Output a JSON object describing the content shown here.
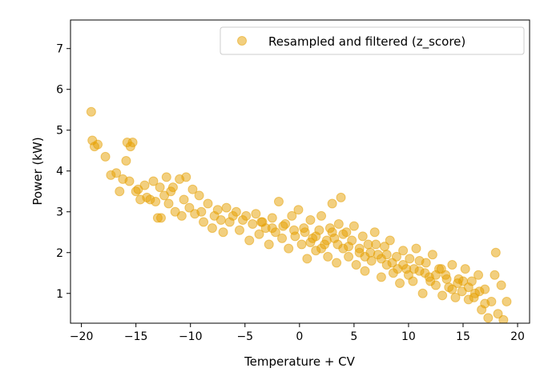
{
  "chart_data": {
    "type": "scatter",
    "xlabel": "Temperature + CV",
    "ylabel": "Power (kW)",
    "xlim": [
      -21.0,
      21.1
    ],
    "ylim": [
      0.27,
      7.7
    ],
    "xticks": [
      -20,
      -15,
      -10,
      -5,
      0,
      5,
      10,
      15,
      20
    ],
    "yticks": [
      1,
      2,
      3,
      4,
      5,
      6,
      7
    ],
    "grid": false,
    "legend_position": "top-right",
    "series": [
      {
        "name": "Resampled and filtered (z_score)",
        "color": "#E69F00",
        "alpha": 0.5,
        "points": [
          [
            -19.1,
            5.45
          ],
          [
            -19.0,
            4.75
          ],
          [
            -18.8,
            4.6
          ],
          [
            -18.5,
            4.65
          ],
          [
            -17.8,
            4.35
          ],
          [
            -17.3,
            3.9
          ],
          [
            -16.8,
            3.95
          ],
          [
            -16.5,
            3.5
          ],
          [
            -16.2,
            3.8
          ],
          [
            -15.9,
            4.25
          ],
          [
            -15.8,
            4.7
          ],
          [
            -15.6,
            3.75
          ],
          [
            -15.5,
            4.6
          ],
          [
            -15.3,
            4.7
          ],
          [
            -15.0,
            3.5
          ],
          [
            -14.8,
            3.55
          ],
          [
            -14.6,
            3.3
          ],
          [
            -14.2,
            3.65
          ],
          [
            -14.0,
            3.35
          ],
          [
            -13.7,
            3.3
          ],
          [
            -13.4,
            3.75
          ],
          [
            -13.2,
            3.25
          ],
          [
            -13.0,
            2.85
          ],
          [
            -12.8,
            3.6
          ],
          [
            -12.7,
            2.85
          ],
          [
            -12.4,
            3.4
          ],
          [
            -12.2,
            3.85
          ],
          [
            -12.0,
            3.2
          ],
          [
            -11.8,
            3.5
          ],
          [
            -11.6,
            3.6
          ],
          [
            -11.4,
            3.0
          ],
          [
            -11.0,
            3.8
          ],
          [
            -10.8,
            2.9
          ],
          [
            -10.6,
            3.3
          ],
          [
            -10.4,
            3.85
          ],
          [
            -10.1,
            3.1
          ],
          [
            -9.8,
            3.55
          ],
          [
            -9.6,
            2.95
          ],
          [
            -9.2,
            3.4
          ],
          [
            -9.0,
            3.0
          ],
          [
            -8.8,
            2.75
          ],
          [
            -8.4,
            3.2
          ],
          [
            -8.0,
            2.6
          ],
          [
            -7.8,
            2.9
          ],
          [
            -7.5,
            3.05
          ],
          [
            -7.2,
            2.8
          ],
          [
            -7.0,
            2.5
          ],
          [
            -6.7,
            3.1
          ],
          [
            -6.4,
            2.75
          ],
          [
            -6.1,
            2.9
          ],
          [
            -5.8,
            3.0
          ],
          [
            -5.5,
            2.55
          ],
          [
            -5.2,
            2.8
          ],
          [
            -4.9,
            2.9
          ],
          [
            -4.6,
            2.3
          ],
          [
            -4.3,
            2.7
          ],
          [
            -4.0,
            2.95
          ],
          [
            -3.7,
            2.45
          ],
          [
            -3.4,
            2.75
          ],
          [
            -3.1,
            2.6
          ],
          [
            -2.8,
            2.2
          ],
          [
            -2.5,
            2.85
          ],
          [
            -2.2,
            2.5
          ],
          [
            -1.9,
            3.25
          ],
          [
            -1.6,
            2.35
          ],
          [
            -1.3,
            2.7
          ],
          [
            -1.0,
            2.1
          ],
          [
            -0.7,
            2.9
          ],
          [
            -0.4,
            2.4
          ],
          [
            -0.1,
            3.05
          ],
          [
            0.2,
            2.2
          ],
          [
            0.4,
            2.6
          ],
          [
            0.7,
            1.85
          ],
          [
            1.0,
            2.8
          ],
          [
            1.2,
            2.35
          ],
          [
            1.5,
            2.05
          ],
          [
            1.8,
            2.55
          ],
          [
            2.0,
            2.9
          ],
          [
            2.3,
            2.2
          ],
          [
            2.6,
            1.9
          ],
          [
            2.8,
            2.6
          ],
          [
            3.0,
            3.2
          ],
          [
            3.2,
            2.35
          ],
          [
            3.4,
            1.75
          ],
          [
            3.6,
            2.7
          ],
          [
            3.8,
            3.35
          ],
          [
            4.0,
            2.1
          ],
          [
            4.3,
            2.5
          ],
          [
            4.5,
            1.9
          ],
          [
            4.8,
            2.3
          ],
          [
            5.0,
            2.65
          ],
          [
            5.2,
            1.7
          ],
          [
            5.5,
            2.0
          ],
          [
            5.8,
            2.4
          ],
          [
            6.0,
            1.55
          ],
          [
            6.3,
            2.2
          ],
          [
            6.6,
            1.8
          ],
          [
            6.9,
            2.5
          ],
          [
            7.2,
            1.95
          ],
          [
            7.5,
            1.4
          ],
          [
            7.8,
            2.15
          ],
          [
            8.0,
            1.7
          ],
          [
            8.3,
            2.3
          ],
          [
            8.6,
            1.5
          ],
          [
            8.9,
            1.9
          ],
          [
            9.2,
            1.25
          ],
          [
            9.5,
            2.05
          ],
          [
            9.8,
            1.6
          ],
          [
            10.1,
            1.85
          ],
          [
            10.4,
            1.3
          ],
          [
            10.7,
            2.1
          ],
          [
            11.0,
            1.55
          ],
          [
            11.3,
            1.0
          ],
          [
            11.6,
            1.75
          ],
          [
            11.9,
            1.4
          ],
          [
            12.2,
            1.95
          ],
          [
            12.5,
            1.2
          ],
          [
            12.8,
            1.6
          ],
          [
            13.1,
            0.95
          ],
          [
            13.4,
            1.45
          ],
          [
            13.7,
            1.15
          ],
          [
            14.0,
            1.7
          ],
          [
            14.3,
            0.9
          ],
          [
            14.6,
            1.35
          ],
          [
            14.9,
            1.05
          ],
          [
            15.2,
            1.6
          ],
          [
            15.5,
            0.85
          ],
          [
            15.8,
            1.3
          ],
          [
            16.1,
            1.0
          ],
          [
            16.4,
            1.45
          ],
          [
            16.7,
            0.6
          ],
          [
            17.0,
            1.1
          ],
          [
            17.3,
            0.4
          ],
          [
            17.6,
            0.8
          ],
          [
            17.9,
            1.45
          ],
          [
            18.0,
            2.0
          ],
          [
            18.2,
            0.5
          ],
          [
            18.5,
            1.2
          ],
          [
            18.7,
            0.35
          ],
          [
            19.0,
            0.8
          ],
          [
            0.5,
            2.5
          ],
          [
            1.5,
            2.4
          ],
          [
            2.5,
            2.3
          ],
          [
            3.5,
            2.2
          ],
          [
            4.5,
            2.15
          ],
          [
            5.5,
            2.1
          ],
          [
            6.5,
            2.0
          ],
          [
            7.5,
            1.85
          ],
          [
            8.5,
            1.75
          ],
          [
            9.5,
            1.7
          ],
          [
            10.5,
            1.6
          ],
          [
            11.5,
            1.5
          ],
          [
            12.5,
            1.45
          ],
          [
            13.5,
            1.35
          ],
          [
            14.5,
            1.25
          ],
          [
            15.5,
            1.15
          ],
          [
            16.5,
            1.05
          ],
          [
            -0.5,
            2.55
          ],
          [
            -1.5,
            2.65
          ],
          [
            -2.5,
            2.6
          ],
          [
            -3.5,
            2.75
          ],
          [
            1.0,
            2.25
          ],
          [
            2.0,
            2.1
          ],
          [
            3.0,
            2.5
          ],
          [
            4.0,
            2.45
          ],
          [
            6.0,
            1.9
          ],
          [
            7.0,
            2.2
          ],
          [
            8.0,
            1.95
          ],
          [
            9.0,
            1.6
          ],
          [
            10.0,
            1.45
          ],
          [
            11.0,
            1.8
          ],
          [
            12.0,
            1.3
          ],
          [
            13.0,
            1.6
          ],
          [
            14.0,
            1.1
          ],
          [
            15.0,
            1.3
          ],
          [
            16.0,
            0.9
          ],
          [
            17.0,
            0.75
          ]
        ]
      }
    ]
  }
}
